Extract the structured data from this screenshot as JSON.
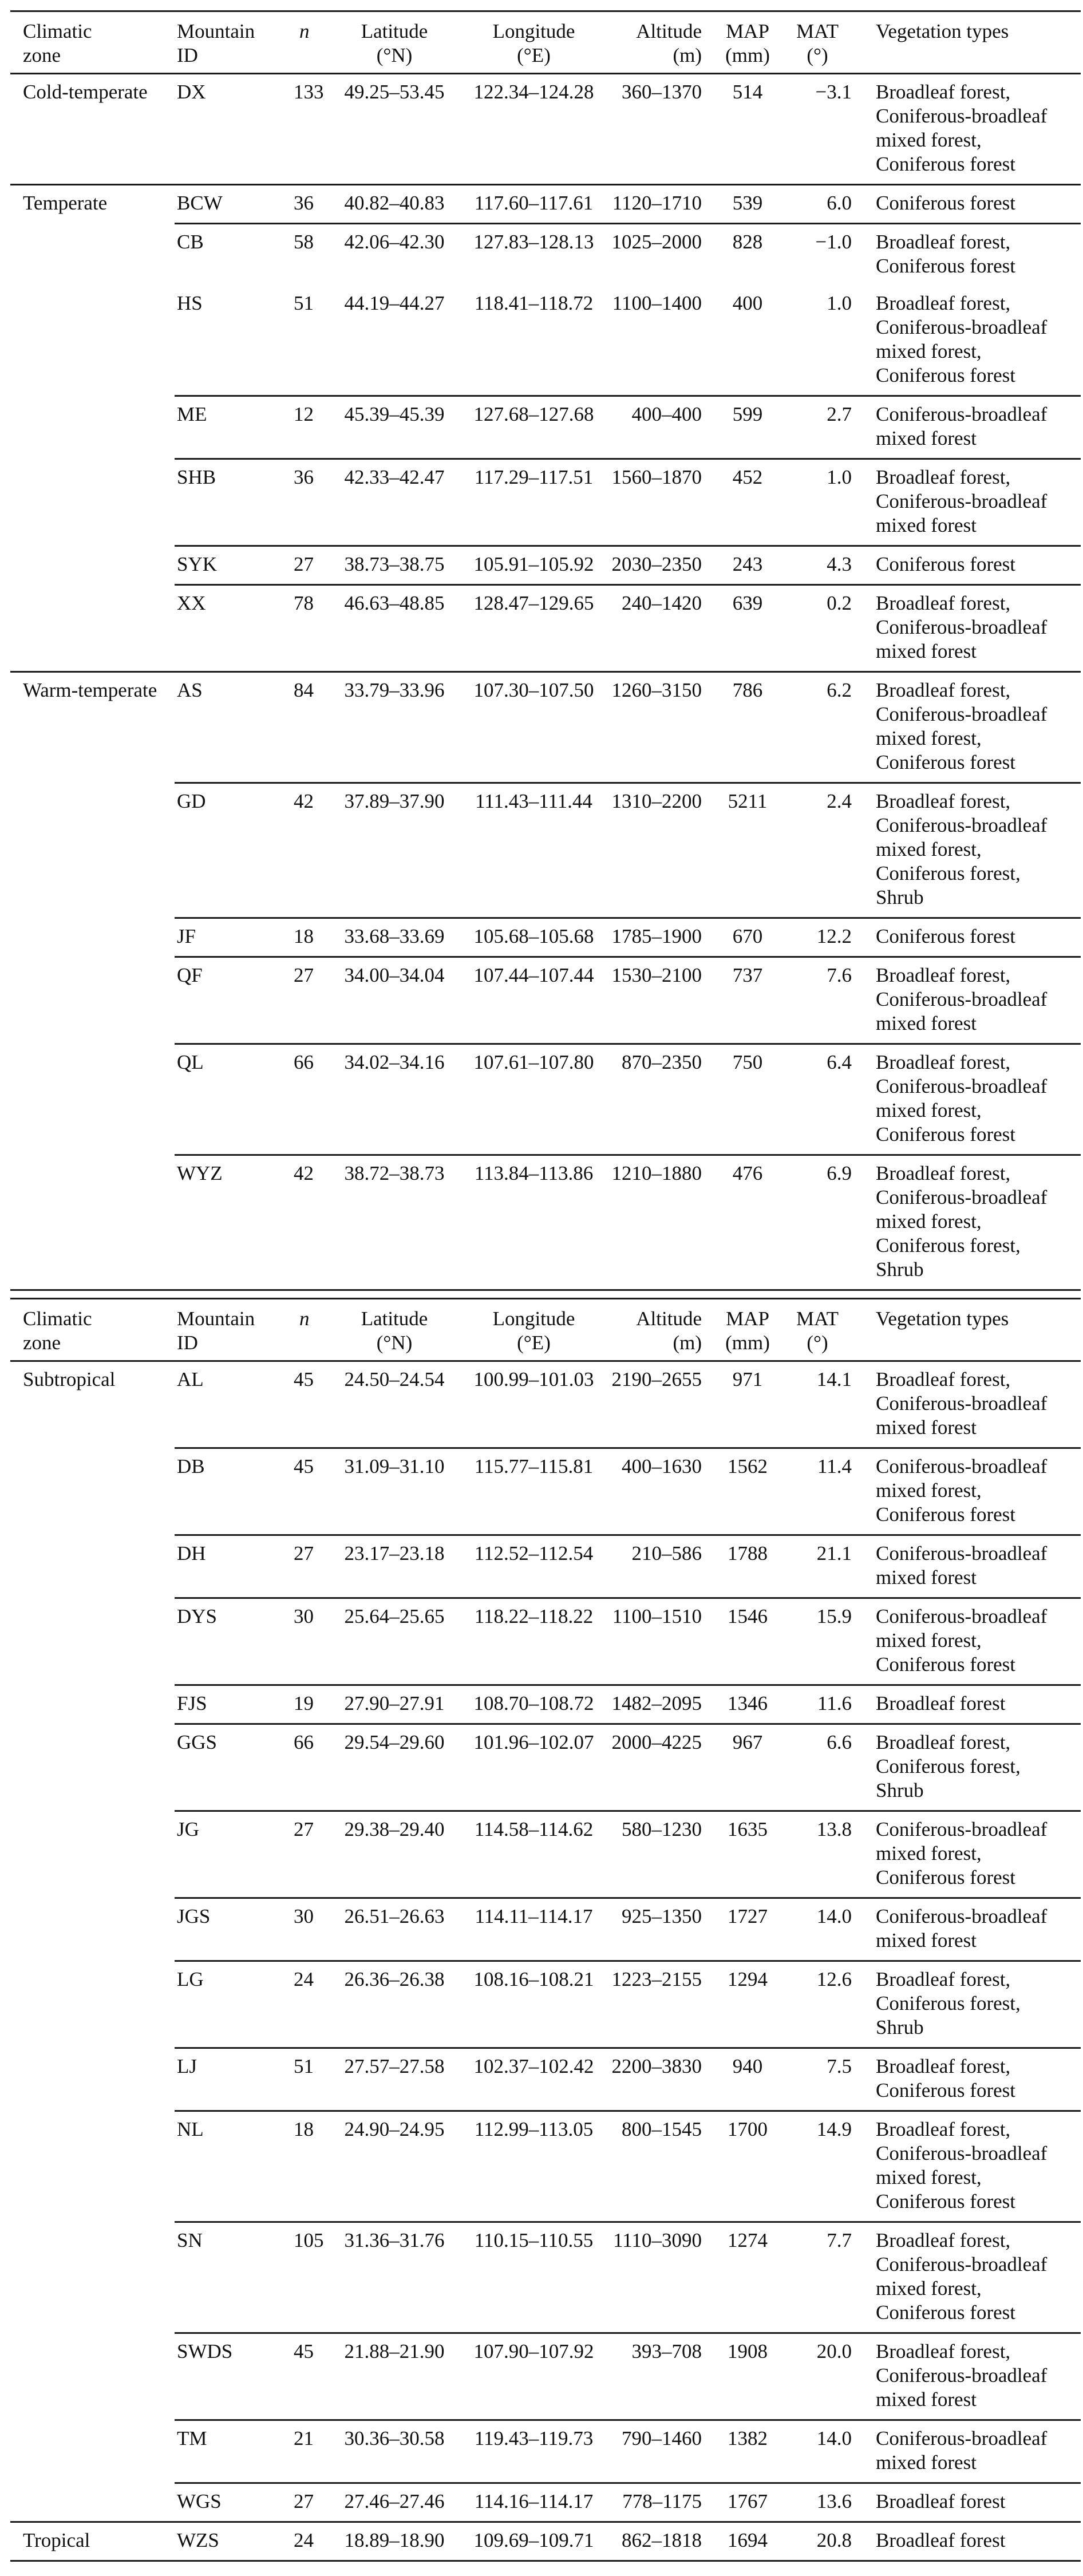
{
  "page": {
    "background": "#ffffff",
    "text_color": "#111111",
    "rule_color": "#1c1c1c"
  },
  "tables": [
    {
      "name": "study-sites-table-part-1",
      "header": {
        "climatic_zone": [
          "Climatic",
          "zone"
        ],
        "mountain_id": [
          "Mountain",
          "ID"
        ],
        "n": "n",
        "latitude": [
          "Latitude",
          "(°N)"
        ],
        "longitude": [
          "Longitude",
          "(°E)"
        ],
        "altitude": [
          "Altitude",
          "(m)"
        ],
        "map": [
          "MAP",
          "(mm)"
        ],
        "mat": [
          "MAT",
          "(°)"
        ],
        "vegetation": "Vegetation types"
      },
      "rows": [
        {
          "zone": "Cold-temperate",
          "id": "DX",
          "n": "133",
          "latitude": "49.25–53.45",
          "longitude": "122.34–124.28",
          "altitude": "360–1370",
          "map": "514",
          "mat": "−3.1",
          "vegetation": [
            "Broadleaf forest,",
            "Coniferous-broadleaf",
            "mixed forest,",
            "Coniferous forest"
          ],
          "rule_top": "none"
        },
        {
          "zone": "Temperate",
          "id": "BCW",
          "n": "36",
          "latitude": "40.82–40.83",
          "longitude": "117.60–117.61",
          "altitude": "1120–1710",
          "map": "539",
          "mat": "6.0",
          "vegetation": [
            "Coniferous forest"
          ],
          "rule_top": "full"
        },
        {
          "zone": "",
          "id": "CB",
          "n": "58",
          "latitude": "42.06–42.30",
          "longitude": "127.83–128.13",
          "altitude": "1025–2000",
          "map": "828",
          "mat": "−1.0",
          "vegetation": [
            "Broadleaf forest,",
            "Coniferous forest"
          ],
          "rule_top": "partial"
        },
        {
          "zone": "",
          "id": "HS",
          "n": "51",
          "latitude": "44.19–44.27",
          "longitude": "118.41–118.72",
          "altitude": "1100–1400",
          "map": "400",
          "mat": "1.0",
          "vegetation": [
            "Broadleaf forest,",
            "Coniferous-broadleaf",
            "mixed forest,",
            "Coniferous forest"
          ],
          "rule_top": "none"
        },
        {
          "zone": "",
          "id": "ME",
          "n": "12",
          "latitude": "45.39–45.39",
          "longitude": "127.68–127.68",
          "altitude": "400–400",
          "map": "599",
          "mat": "2.7",
          "vegetation": [
            "Coniferous-broadleaf",
            "mixed forest"
          ],
          "rule_top": "partial"
        },
        {
          "zone": "",
          "id": "SHB",
          "n": "36",
          "latitude": "42.33–42.47",
          "longitude": "117.29–117.51",
          "altitude": "1560–1870",
          "map": "452",
          "mat": "1.0",
          "vegetation": [
            "Broadleaf forest,",
            "Coniferous-broadleaf",
            "mixed forest"
          ],
          "rule_top": "partial"
        },
        {
          "zone": "",
          "id": "SYK",
          "n": "27",
          "latitude": "38.73–38.75",
          "longitude": "105.91–105.92",
          "altitude": "2030–2350",
          "map": "243",
          "mat": "4.3",
          "vegetation": [
            "Coniferous forest"
          ],
          "rule_top": "partial"
        },
        {
          "zone": "",
          "id": "XX",
          "n": "78",
          "latitude": "46.63–48.85",
          "longitude": "128.47–129.65",
          "altitude": "240–1420",
          "map": "639",
          "mat": "0.2",
          "vegetation": [
            "Broadleaf forest,",
            "Coniferous-broadleaf",
            "mixed forest"
          ],
          "rule_top": "partial"
        },
        {
          "zone": "Warm-temperate",
          "id": "AS",
          "n": "84",
          "latitude": "33.79–33.96",
          "longitude": "107.30–107.50",
          "altitude": "1260–3150",
          "map": "786",
          "mat": "6.2",
          "vegetation": [
            "Broadleaf forest,",
            "Coniferous-broadleaf",
            "mixed forest,",
            "Coniferous forest"
          ],
          "rule_top": "full"
        },
        {
          "zone": "",
          "id": "GD",
          "n": "42",
          "latitude": "37.89–37.90",
          "longitude": "111.43–111.44",
          "altitude": "1310–2200",
          "map": "5211",
          "mat": "2.4",
          "vegetation": [
            "Broadleaf forest,",
            "Coniferous-broadleaf",
            "mixed forest,",
            "Coniferous forest,",
            "Shrub"
          ],
          "rule_top": "partial"
        },
        {
          "zone": "",
          "id": "JF",
          "n": "18",
          "latitude": "33.68–33.69",
          "longitude": "105.68–105.68",
          "altitude": "1785–1900",
          "map": "670",
          "mat": "12.2",
          "vegetation": [
            "Coniferous forest"
          ],
          "rule_top": "partial"
        },
        {
          "zone": "",
          "id": "QF",
          "n": "27",
          "latitude": "34.00–34.04",
          "longitude": "107.44–107.44",
          "altitude": "1530–2100",
          "map": "737",
          "mat": "7.6",
          "vegetation": [
            "Broadleaf forest,",
            "Coniferous-broadleaf",
            "mixed forest"
          ],
          "rule_top": "partial"
        },
        {
          "zone": "",
          "id": "QL",
          "n": "66",
          "latitude": "34.02–34.16",
          "longitude": "107.61–107.80",
          "altitude": "870–2350",
          "map": "750",
          "mat": "6.4",
          "vegetation": [
            "Broadleaf forest,",
            "Coniferous-broadleaf",
            "mixed forest,",
            "Coniferous forest"
          ],
          "rule_top": "partial"
        },
        {
          "zone": "",
          "id": "WYZ",
          "n": "42",
          "latitude": "38.72–38.73",
          "longitude": "113.84–113.86",
          "altitude": "1210–1880",
          "map": "476",
          "mat": "6.9",
          "vegetation": [
            "Broadleaf forest,",
            "Coniferous-broadleaf",
            "mixed forest,",
            "Coniferous forest,",
            "Shrub"
          ],
          "rule_top": "partial"
        }
      ]
    },
    {
      "name": "study-sites-table-part-2",
      "header": {
        "climatic_zone": [
          "Climatic",
          "zone"
        ],
        "mountain_id": [
          "Mountain",
          "ID"
        ],
        "n": "n",
        "latitude": [
          "Latitude",
          "(°N)"
        ],
        "longitude": [
          "Longitude",
          "(°E)"
        ],
        "altitude": [
          "Altitude",
          "(m)"
        ],
        "map": [
          "MAP",
          "(mm)"
        ],
        "mat": [
          "MAT",
          "(°)"
        ],
        "vegetation": "Vegetation types"
      },
      "rows": [
        {
          "zone": "Subtropical",
          "id": "AL",
          "n": "45",
          "latitude": "24.50–24.54",
          "longitude": "100.99–101.03",
          "altitude": "2190–2655",
          "map": "971",
          "mat": "14.1",
          "vegetation": [
            "Broadleaf forest,",
            "Coniferous-broadleaf",
            "mixed forest"
          ],
          "rule_top": "none"
        },
        {
          "zone": "",
          "id": "DB",
          "n": "45",
          "latitude": "31.09–31.10",
          "longitude": "115.77–115.81",
          "altitude": "400–1630",
          "map": "1562",
          "mat": "11.4",
          "vegetation": [
            "Coniferous-broadleaf",
            "mixed forest,",
            "Coniferous forest"
          ],
          "rule_top": "partial"
        },
        {
          "zone": "",
          "id": "DH",
          "n": "27",
          "latitude": "23.17–23.18",
          "longitude": "112.52–112.54",
          "altitude": "210–586",
          "map": "1788",
          "mat": "21.1",
          "vegetation": [
            "Coniferous-broadleaf",
            "mixed forest"
          ],
          "rule_top": "partial"
        },
        {
          "zone": "",
          "id": "DYS",
          "n": "30",
          "latitude": "25.64–25.65",
          "longitude": "118.22–118.22",
          "altitude": "1100–1510",
          "map": "1546",
          "mat": "15.9",
          "vegetation": [
            "Coniferous-broadleaf",
            "mixed forest,",
            "Coniferous forest"
          ],
          "rule_top": "partial"
        },
        {
          "zone": "",
          "id": "FJS",
          "n": "19",
          "latitude": "27.90–27.91",
          "longitude": "108.70–108.72",
          "altitude": "1482–2095",
          "map": "1346",
          "mat": "11.6",
          "vegetation": [
            "Broadleaf forest"
          ],
          "rule_top": "partial"
        },
        {
          "zone": "",
          "id": "GGS",
          "n": "66",
          "latitude": "29.54–29.60",
          "longitude": "101.96–102.07",
          "altitude": "2000–4225",
          "map": "967",
          "mat": "6.6",
          "vegetation": [
            "Broadleaf forest,",
            "Coniferous forest,",
            "Shrub"
          ],
          "rule_top": "partial"
        },
        {
          "zone": "",
          "id": "JG",
          "n": "27",
          "latitude": "29.38–29.40",
          "longitude": "114.58–114.62",
          "altitude": "580–1230",
          "map": "1635",
          "mat": "13.8",
          "vegetation": [
            "Coniferous-broadleaf",
            "mixed forest,",
            "Coniferous forest"
          ],
          "rule_top": "partial"
        },
        {
          "zone": "",
          "id": "JGS",
          "n": "30",
          "latitude": "26.51–26.63",
          "longitude": "114.11–114.17",
          "altitude": "925–1350",
          "map": "1727",
          "mat": "14.0",
          "vegetation": [
            "Coniferous-broadleaf",
            "mixed forest"
          ],
          "rule_top": "partial"
        },
        {
          "zone": "",
          "id": "LG",
          "n": "24",
          "latitude": "26.36–26.38",
          "longitude": "108.16–108.21",
          "altitude": "1223–2155",
          "map": "1294",
          "mat": "12.6",
          "vegetation": [
            "Broadleaf forest,",
            "Coniferous forest,",
            "Shrub"
          ],
          "rule_top": "partial"
        },
        {
          "zone": "",
          "id": "LJ",
          "n": "51",
          "latitude": "27.57–27.58",
          "longitude": "102.37–102.42",
          "altitude": "2200–3830",
          "map": "940",
          "mat": "7.5",
          "vegetation": [
            "Broadleaf forest,",
            "Coniferous forest"
          ],
          "rule_top": "partial"
        },
        {
          "zone": "",
          "id": "NL",
          "n": "18",
          "latitude": "24.90–24.95",
          "longitude": "112.99–113.05",
          "altitude": "800–1545",
          "map": "1700",
          "mat": "14.9",
          "vegetation": [
            "Broadleaf forest,",
            "Coniferous-broadleaf",
            "mixed forest,",
            "Coniferous forest"
          ],
          "rule_top": "partial"
        },
        {
          "zone": "",
          "id": "SN",
          "n": "105",
          "latitude": "31.36–31.76",
          "longitude": "110.15–110.55",
          "altitude": "1110–3090",
          "map": "1274",
          "mat": "7.7",
          "vegetation": [
            "Broadleaf forest,",
            "Coniferous-broadleaf",
            "mixed forest,",
            "Coniferous forest"
          ],
          "rule_top": "partial"
        },
        {
          "zone": "",
          "id": "SWDS",
          "n": "45",
          "latitude": "21.88–21.90",
          "longitude": "107.90–107.92",
          "altitude": "393–708",
          "map": "1908",
          "mat": "20.0",
          "vegetation": [
            "Broadleaf forest,",
            "Coniferous-broadleaf",
            "mixed forest"
          ],
          "rule_top": "partial"
        },
        {
          "zone": "",
          "id": "TM",
          "n": "21",
          "latitude": "30.36–30.58",
          "longitude": "119.43–119.73",
          "altitude": "790–1460",
          "map": "1382",
          "mat": "14.0",
          "vegetation": [
            "Coniferous-broadleaf",
            "mixed forest"
          ],
          "rule_top": "partial"
        },
        {
          "zone": "",
          "id": "WGS",
          "n": "27",
          "latitude": "27.46–27.46",
          "longitude": "114.16–114.17",
          "altitude": "778–1175",
          "map": "1767",
          "mat": "13.6",
          "vegetation": [
            "Broadleaf forest"
          ],
          "rule_top": "partial"
        },
        {
          "zone": "Tropical",
          "id": "WZS",
          "n": "24",
          "latitude": "18.89–18.90",
          "longitude": "109.69–109.71",
          "altitude": "862–1818",
          "map": "1694",
          "mat": "20.8",
          "vegetation": [
            "Broadleaf forest"
          ],
          "rule_top": "full"
        }
      ]
    }
  ]
}
